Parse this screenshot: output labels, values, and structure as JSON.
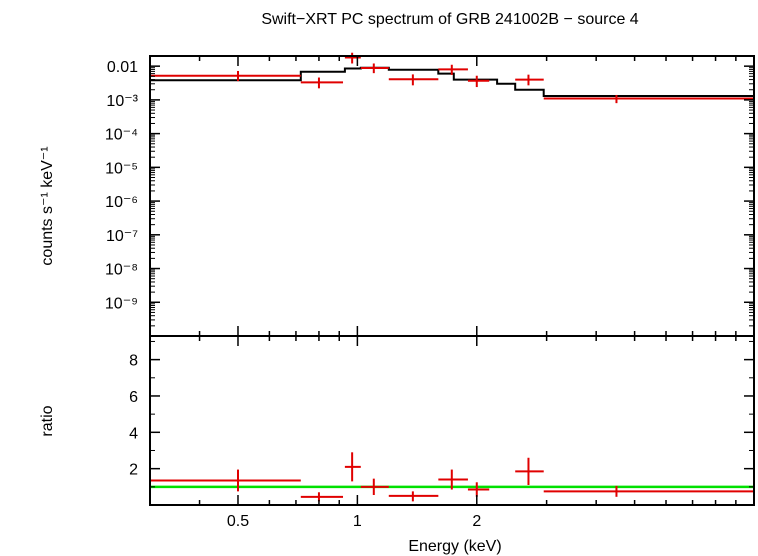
{
  "chart_data": {
    "type": "scatter",
    "title": "Swift−XRT PC spectrum of GRB 241002B − source 4",
    "xlabel": "Energy (keV)",
    "xscale": "log",
    "xlim": [
      0.3,
      10.0
    ],
    "x_ticklabels": [
      "0.5",
      "1",
      "2"
    ],
    "panels": [
      {
        "name": "spectrum",
        "ylabel": "counts s⁻¹ keV⁻¹",
        "yscale": "log",
        "ylim": [
          1e-10,
          0.02
        ],
        "y_ticklabels": [
          "0.01",
          "10⁻³",
          "10⁻⁴",
          "10⁻⁵",
          "10⁻⁶",
          "10⁻⁷",
          "10⁻⁸",
          "10⁻⁹"
        ],
        "series": [
          {
            "role": "data",
            "color": "#e00000",
            "points": [
              {
                "x": 0.5,
                "xlo": 0.3,
                "xhi": 0.72,
                "y": 0.0052,
                "ylo": 0.0036,
                "yhi": 0.0072
              },
              {
                "x": 0.8,
                "xlo": 0.72,
                "xhi": 0.92,
                "y": 0.0033,
                "ylo": 0.0022,
                "yhi": 0.0046
              },
              {
                "x": 0.97,
                "xlo": 0.93,
                "xhi": 1.02,
                "y": 0.018,
                "ylo": 0.012,
                "yhi": 0.025
              },
              {
                "x": 1.1,
                "xlo": 1.02,
                "xhi": 1.2,
                "y": 0.0088,
                "ylo": 0.0062,
                "yhi": 0.012
              },
              {
                "x": 1.38,
                "xlo": 1.2,
                "xhi": 1.6,
                "y": 0.0041,
                "ylo": 0.0027,
                "yhi": 0.0057
              },
              {
                "x": 1.73,
                "xlo": 1.6,
                "xhi": 1.9,
                "y": 0.008,
                "ylo": 0.0055,
                "yhi": 0.011
              },
              {
                "x": 2.0,
                "xlo": 1.9,
                "xhi": 2.15,
                "y": 0.0037,
                "ylo": 0.0024,
                "yhi": 0.0052
              },
              {
                "x": 2.7,
                "xlo": 2.5,
                "xhi": 2.95,
                "y": 0.004,
                "ylo": 0.0027,
                "yhi": 0.0056
              },
              {
                "x": 4.5,
                "xlo": 2.95,
                "xhi": 10.0,
                "y": 0.0011,
                "ylo": 0.0008,
                "yhi": 0.0014
              }
            ]
          },
          {
            "role": "model",
            "color": "#000000",
            "steps": [
              {
                "x0": 0.3,
                "x1": 0.72,
                "y": 0.0038
              },
              {
                "x0": 0.72,
                "x1": 0.93,
                "y": 0.0068
              },
              {
                "x0": 0.93,
                "x1": 1.02,
                "y": 0.0085
              },
              {
                "x0": 1.02,
                "x1": 1.2,
                "y": 0.009
              },
              {
                "x0": 1.2,
                "x1": 1.6,
                "y": 0.0078
              },
              {
                "x0": 1.6,
                "x1": 1.75,
                "y": 0.006
              },
              {
                "x0": 1.75,
                "x1": 2.25,
                "y": 0.004
              },
              {
                "x0": 2.25,
                "x1": 2.5,
                "y": 0.003
              },
              {
                "x0": 2.5,
                "x1": 2.95,
                "y": 0.002
              },
              {
                "x0": 2.95,
                "x1": 10.0,
                "y": 0.0013
              }
            ]
          }
        ]
      },
      {
        "name": "ratio",
        "ylabel": "ratio",
        "yscale": "linear",
        "ylim": [
          0,
          9.3
        ],
        "y_ticklabels": [
          "2",
          "4",
          "6",
          "8"
        ],
        "y_ticks": [
          2,
          4,
          6,
          8
        ],
        "series": [
          {
            "role": "data",
            "color": "#e00000",
            "points": [
              {
                "x": 0.5,
                "xlo": 0.3,
                "xhi": 0.72,
                "y": 1.35,
                "ylo": 0.75,
                "yhi": 1.95
              },
              {
                "x": 0.8,
                "xlo": 0.72,
                "xhi": 0.92,
                "y": 0.45,
                "ylo": 0.2,
                "yhi": 0.7
              },
              {
                "x": 0.97,
                "xlo": 0.93,
                "xhi": 1.02,
                "y": 2.1,
                "ylo": 1.3,
                "yhi": 2.9
              },
              {
                "x": 1.1,
                "xlo": 1.02,
                "xhi": 1.2,
                "y": 1.0,
                "ylo": 0.55,
                "yhi": 1.45
              },
              {
                "x": 1.38,
                "xlo": 1.2,
                "xhi": 1.6,
                "y": 0.5,
                "ylo": 0.2,
                "yhi": 0.75
              },
              {
                "x": 1.73,
                "xlo": 1.6,
                "xhi": 1.9,
                "y": 1.4,
                "ylo": 0.85,
                "yhi": 1.95
              },
              {
                "x": 2.0,
                "xlo": 1.9,
                "xhi": 2.15,
                "y": 0.85,
                "ylo": 0.45,
                "yhi": 1.25
              },
              {
                "x": 2.7,
                "xlo": 2.5,
                "xhi": 2.95,
                "y": 1.85,
                "ylo": 1.1,
                "yhi": 2.6
              },
              {
                "x": 4.5,
                "xlo": 2.95,
                "xhi": 10.0,
                "y": 0.75,
                "ylo": 0.45,
                "yhi": 1.05
              }
            ]
          },
          {
            "role": "unity",
            "color": "#00e000",
            "y": 1.0
          }
        ]
      }
    ]
  }
}
